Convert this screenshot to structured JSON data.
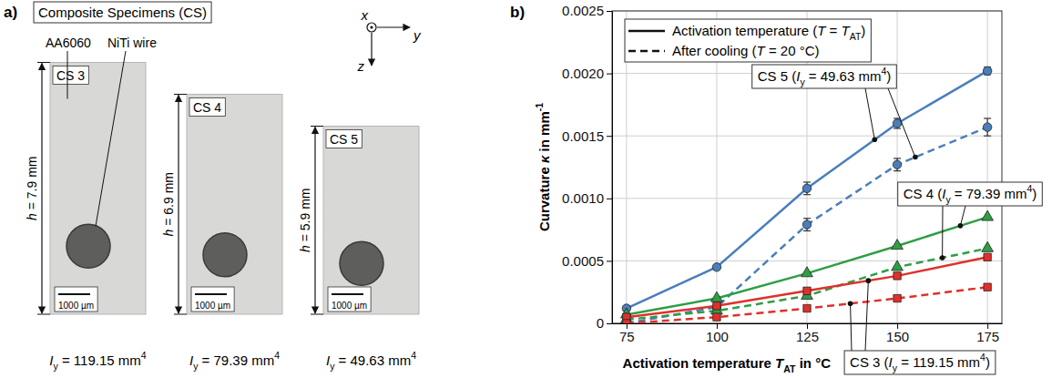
{
  "panel_a": {
    "label": "a)",
    "title": "Composite Specimens (CS)",
    "material_label": "AA6060",
    "wire_label": "NiTi wire",
    "axes": [
      "x",
      "y",
      "z"
    ],
    "scale_bar": "1000 µm",
    "specimens": [
      {
        "label": "CS 3",
        "h_mm": 7.9,
        "h_label": [
          {
            "i": "h"
          },
          {
            "t": " = 7.9 mm"
          }
        ],
        "iy_label": [
          {
            "i": "I"
          },
          {
            "sub": "y"
          },
          {
            "t": " = 119.15 mm"
          },
          {
            "sup": "4"
          }
        ]
      },
      {
        "label": "CS 4",
        "h_mm": 6.9,
        "h_label": [
          {
            "i": "h"
          },
          {
            "t": " = 6.9 mm"
          }
        ],
        "iy_label": [
          {
            "i": "I"
          },
          {
            "sub": "y"
          },
          {
            "t": " = 79.39 mm"
          },
          {
            "sup": "4"
          }
        ]
      },
      {
        "label": "CS 5",
        "h_mm": 5.9,
        "h_label": [
          {
            "i": "h"
          },
          {
            "t": " = 5.9 mm"
          }
        ],
        "iy_label": [
          {
            "i": "I"
          },
          {
            "sub": "y"
          },
          {
            "t": " = 49.63 mm"
          },
          {
            "sup": "4"
          }
        ]
      }
    ]
  },
  "chart_data": {
    "type": "line",
    "label": "b)",
    "x_label": [
      {
        "t": "Activation temperature "
      },
      {
        "i": "T"
      },
      {
        "sub": "AT"
      },
      {
        "t": " in °C"
      }
    ],
    "y_label": [
      {
        "t": "Curvature "
      },
      {
        "i": "κ"
      },
      {
        "t": " in mm"
      },
      {
        "sup": "-1"
      }
    ],
    "x": [
      75,
      100,
      125,
      150,
      175
    ],
    "xlim": [
      71,
      179
    ],
    "ylim": [
      0,
      0.0025
    ],
    "xticks": [
      75,
      100,
      125,
      150,
      175
    ],
    "yticks": [
      0,
      0.0005,
      {
        "value": 0.001,
        "label": "0.0010"
      },
      0.0015,
      {
        "value": 0.002,
        "label": "0.0020"
      },
      0.0025
    ],
    "grid": true,
    "legend": "upper left",
    "legend_entries": [
      {
        "line_style": "solid",
        "label": [
          {
            "t": "Activation temperature ("
          },
          {
            "i": "T"
          },
          {
            "t": " = "
          },
          {
            "i": "T"
          },
          {
            "sub": "AT"
          },
          {
            "t": ")"
          }
        ]
      },
      {
        "line_style": "dashed",
        "label": [
          {
            "t": "After cooling ("
          },
          {
            "i": "T"
          },
          {
            "t": " = 20 °C)"
          }
        ]
      }
    ],
    "series": [
      {
        "color": "#4a7ebb",
        "line_style": "solid",
        "marker": "circle",
        "values": [
          0.00012,
          0.00045,
          0.00108,
          0.0016,
          0.00202
        ],
        "errors": [
          2e-05,
          1e-05,
          5e-05,
          4e-05,
          3e-05
        ]
      },
      {
        "color": "#4a7ebb",
        "line_style": "dashed",
        "marker": "circle",
        "values": [
          0.0,
          0.00013,
          0.00079,
          0.00127,
          0.00157
        ],
        "errors": [
          1e-05,
          1e-05,
          5e-05,
          5e-05,
          7e-05
        ]
      },
      {
        "color": "#2e9e44",
        "line_style": "solid",
        "marker": "triangle",
        "values": [
          7e-05,
          0.0002,
          0.0004,
          0.00062,
          0.00085
        ]
      },
      {
        "color": "#2e9e44",
        "line_style": "dashed",
        "marker": "triangle",
        "values": [
          3e-05,
          0.0001,
          0.00022,
          0.00045,
          0.0006
        ]
      },
      {
        "color": "#e0302c",
        "line_style": "solid",
        "marker": "square",
        "values": [
          5e-05,
          0.00014,
          0.00026,
          0.00038,
          0.00053
        ]
      },
      {
        "color": "#e0302c",
        "line_style": "dashed",
        "marker": "square",
        "values": [
          0.0,
          5e-05,
          0.00012,
          0.0002,
          0.00029
        ]
      }
    ],
    "annotations": [
      {
        "label": [
          {
            "t": "CS 5 ("
          },
          {
            "i": "I"
          },
          {
            "sub": "y"
          },
          {
            "t": " = 49.63 mm"
          },
          {
            "sup": "4"
          },
          {
            "t": ")"
          }
        ],
        "series": [
          0,
          1
        ]
      },
      {
        "label": [
          {
            "t": "CS 4 ("
          },
          {
            "i": "I"
          },
          {
            "sub": "y"
          },
          {
            "t": " = 79.39 mm"
          },
          {
            "sup": "4"
          },
          {
            "t": ")"
          }
        ],
        "series": [
          2,
          3
        ]
      },
      {
        "label": [
          {
            "t": "CS 3 ("
          },
          {
            "i": "I"
          },
          {
            "sub": "y"
          },
          {
            "t": " = 119.15 mm"
          },
          {
            "sup": "4"
          },
          {
            "t": ")"
          }
        ],
        "series": [
          4,
          5
        ]
      }
    ]
  }
}
